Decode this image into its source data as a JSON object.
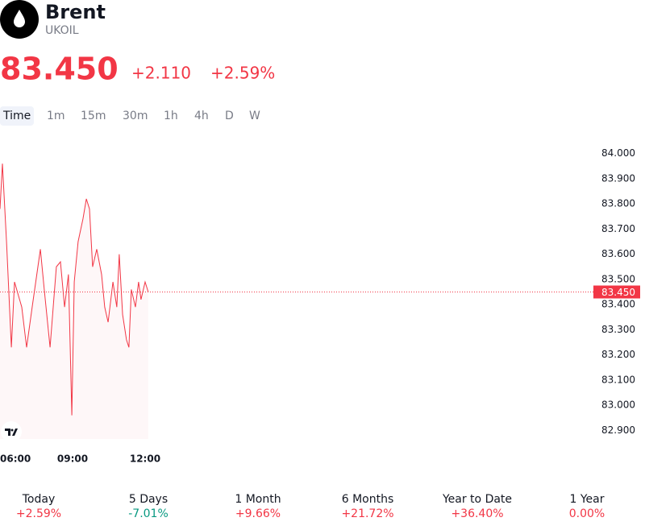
{
  "header": {
    "title": "Brent",
    "symbol": "UKOIL",
    "price": "83.450",
    "change": "+2.110",
    "change_percent": "+2.59%"
  },
  "intervals": {
    "items": [
      "Time",
      "1m",
      "15m",
      "30m",
      "1h",
      "4h",
      "D",
      "W"
    ],
    "selected": 0
  },
  "chart_data": {
    "type": "line",
    "color": "#f23645",
    "x": [
      6.0,
      6.1,
      6.27,
      6.47,
      6.6,
      6.9,
      7.1,
      7.33,
      7.67,
      7.83,
      8.07,
      8.33,
      8.5,
      8.67,
      8.83,
      8.97,
      9.07,
      9.23,
      9.43,
      9.57,
      9.7,
      9.83,
      10.0,
      10.2,
      10.33,
      10.47,
      10.67,
      10.83,
      10.93,
      11.07,
      11.23,
      11.33,
      11.43,
      11.6,
      11.73,
      11.83,
      12.0,
      12.13
    ],
    "values": [
      83.78,
      83.96,
      83.65,
      83.23,
      83.49,
      83.39,
      83.23,
      83.39,
      83.62,
      83.46,
      83.23,
      83.55,
      83.57,
      83.39,
      83.52,
      82.96,
      83.49,
      83.65,
      83.74,
      83.82,
      83.78,
      83.55,
      83.62,
      83.52,
      83.39,
      83.33,
      83.49,
      83.39,
      83.6,
      83.36,
      83.26,
      83.23,
      83.46,
      83.39,
      83.49,
      83.42,
      83.49,
      83.45
    ],
    "xlim": [
      6,
      30.67
    ],
    "ylim": [
      82.85,
      84.05
    ],
    "xticks": [
      {
        "value": 6,
        "label": "06:00"
      },
      {
        "value": 9,
        "label": "09:00"
      },
      {
        "value": 12,
        "label": "12:00"
      }
    ],
    "yticks": [
      {
        "value": 84,
        "label": "84.000"
      },
      {
        "value": 83.9,
        "label": "83.900"
      },
      {
        "value": 83.8,
        "label": "83.800"
      },
      {
        "value": 83.7,
        "label": "83.700"
      },
      {
        "value": 83.6,
        "label": "83.600"
      },
      {
        "value": 83.5,
        "label": "83.500"
      },
      {
        "value": 83.4,
        "label": "83.400"
      },
      {
        "value": 83.3,
        "label": "83.300"
      },
      {
        "value": 83.2,
        "label": "83.200"
      },
      {
        "value": 83.1,
        "label": "83.100"
      },
      {
        "value": 83.0,
        "label": "83.000"
      },
      {
        "value": 82.9,
        "label": "82.900"
      }
    ],
    "price_line": {
      "value": 83.45,
      "label": "83.450"
    }
  },
  "performance": [
    {
      "period": "Today",
      "change": "+2.59%",
      "color": "#f23645"
    },
    {
      "period": "5 Days",
      "change": "-7.01%",
      "color": "#089981"
    },
    {
      "period": "1 Month",
      "change": "+9.66%",
      "color": "#f23645"
    },
    {
      "period": "6 Months",
      "change": "+21.72%",
      "color": "#f23645"
    },
    {
      "period": "Year to Date",
      "change": "+36.40%",
      "color": "#f23645"
    },
    {
      "period": "1 Year",
      "change": "0.00%",
      "color": "#f23645"
    }
  ]
}
